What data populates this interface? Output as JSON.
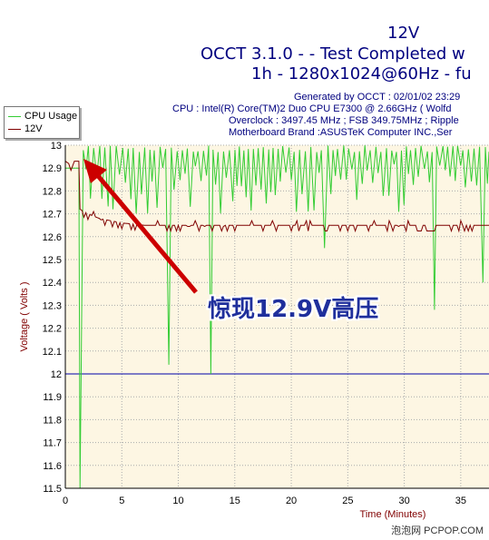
{
  "header": {
    "title": "12V",
    "subtitle_line1": "OCCT 3.1.0 -  - Test Completed w",
    "subtitle_line2": "1h - 1280x1024@60Hz - fu",
    "info_generated": "Generated by OCCT : 02/01/02 23:29",
    "info_cpu": "CPU : Intel(R) Core(TM)2 Duo CPU E7300 @ 2.66GHz ( Wolfd",
    "info_overclock": "Overclock : 3497.45 MHz ; FSB 349.75MHz ; Ripple",
    "info_motherboard": "Motherboard Brand :ASUSTeK Computer INC.,Ser"
  },
  "annotation": "惊现12.9V高压",
  "watermark": "泡泡网 PCPOP.COM",
  "colors": {
    "cpu_usage": "#33cc33",
    "v12": "#7f0000",
    "plot_bg": "#fdf6e3",
    "grid": "#aaaaaa",
    "ref_line": "#0000aa",
    "axis_label": "#800000",
    "arrow": "#cc0000"
  },
  "chart_data": {
    "type": "line",
    "xlabel": "Time (Minutes)",
    "ylabel": "Voltage ( Volts )",
    "xlim": [
      0,
      37.5
    ],
    "ylim": [
      11.5,
      13
    ],
    "x_ticks": [
      "0",
      "5",
      "10",
      "15",
      "20",
      "25",
      "30",
      "35"
    ],
    "y_ticks": [
      "13",
      "12.9",
      "12.8",
      "12.7",
      "12.6",
      "12.5",
      "12.4",
      "12.3",
      "12.2",
      "12.1",
      "12",
      "11.9",
      "11.8",
      "11.7",
      "11.6",
      "11.5"
    ],
    "reference_line": 12,
    "legend": [
      "CPU Usage",
      "12V"
    ],
    "series": [
      {
        "name": "12V",
        "points": [
          [
            0,
            12.93
          ],
          [
            0.3,
            12.92
          ],
          [
            0.5,
            12.89
          ],
          [
            0.8,
            12.93
          ],
          [
            1.2,
            12.93
          ],
          [
            1.3,
            12.72
          ],
          [
            2.0,
            12.7
          ],
          [
            3.0,
            12.68
          ],
          [
            4.0,
            12.67
          ],
          [
            5.0,
            12.66
          ],
          [
            7.0,
            12.65
          ],
          [
            10.0,
            12.65
          ],
          [
            15.0,
            12.65
          ],
          [
            20.0,
            12.65
          ],
          [
            25.0,
            12.65
          ],
          [
            30.0,
            12.65
          ],
          [
            35.0,
            12.65
          ],
          [
            37.5,
            12.65
          ]
        ]
      },
      {
        "name": "CPU Usage",
        "description_values": {
          "oscillation_high": 13.0,
          "oscillation_low": 12.7,
          "dips": [
            [
              1.3,
              11.5
            ],
            [
              9.2,
              12.04
            ],
            [
              13.0,
              12.0
            ],
            [
              23.0,
              12.55
            ],
            [
              32.5,
              12.28
            ],
            [
              37.0,
              12.4
            ]
          ]
        }
      }
    ]
  }
}
